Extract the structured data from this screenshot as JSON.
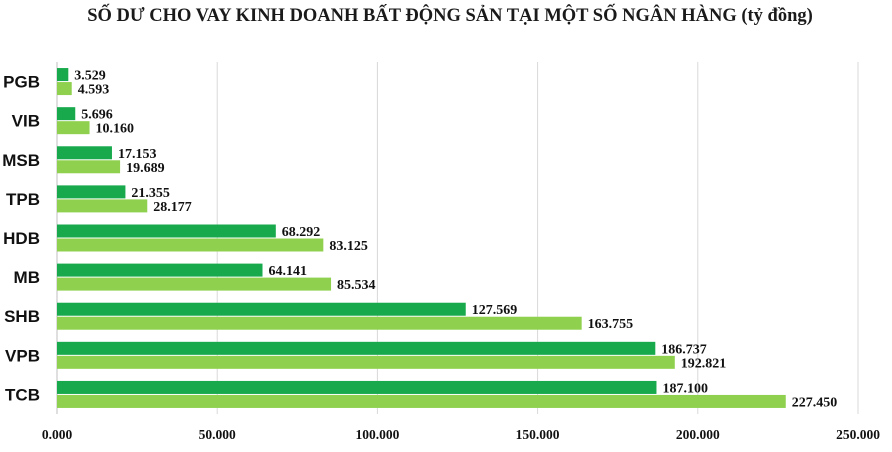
{
  "chart_data": {
    "type": "bar",
    "orientation": "horizontal",
    "title": "SỐ DƯ CHO VAY KINH DOANH BẤT ĐỘNG SẢN TẠI MỘT SỐ NGÂN HÀNG (tỷ đồng)",
    "categories": [
      "PGB",
      "VIB",
      "MSB",
      "TPB",
      "HDB",
      "MB",
      "SHB",
      "VPB",
      "TCB"
    ],
    "series": [
      {
        "color": "#17a94c",
        "values": [
          3529,
          5696,
          17153,
          21355,
          68292,
          64141,
          127569,
          186737,
          187100
        ],
        "labels": [
          "3.529",
          "5.696",
          "17.153",
          "21.355",
          "68.292",
          "64.141",
          "127.569",
          "186.737",
          "187.100"
        ]
      },
      {
        "color": "#8fd14f",
        "values": [
          4593,
          10160,
          19689,
          28177,
          83125,
          85534,
          163755,
          192821,
          227450
        ],
        "labels": [
          "4.593",
          "10.160",
          "19.689",
          "28.177",
          "83.125",
          "85.534",
          "163.755",
          "192.821",
          "227.450"
        ]
      }
    ],
    "x_ticks": [
      0,
      50000,
      100000,
      150000,
      200000,
      250000
    ],
    "x_tick_labels": [
      "0.000",
      "50.000",
      "100.000",
      "150.000",
      "200.000",
      "250.000"
    ],
    "xlim": [
      0,
      250000
    ],
    "grid": "vertical",
    "legend": "none"
  }
}
